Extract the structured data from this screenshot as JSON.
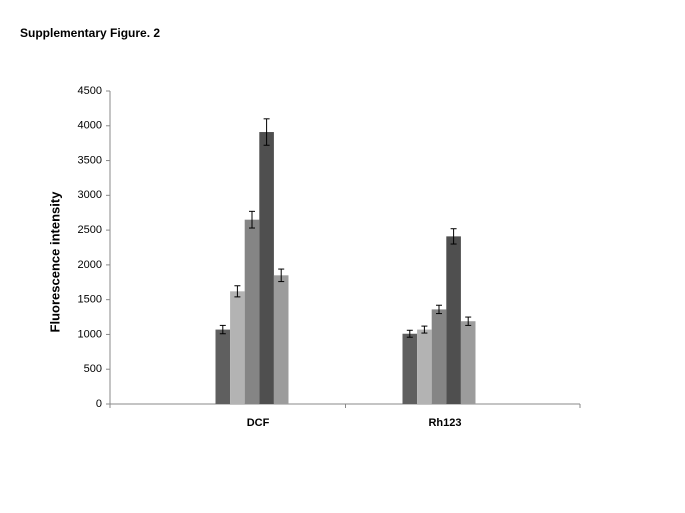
{
  "chart_data": {
    "type": "bar",
    "title": "Supplementary Figure. 2",
    "y_label": "Fluorescence intensity",
    "categories": [
      "DCF",
      "Rh123"
    ],
    "series": [
      {
        "color": "#5f5f5f",
        "values": [
          1070,
          1010
        ],
        "errors": [
          60,
          50
        ]
      },
      {
        "color": "#b3b3b3",
        "values": [
          1620,
          1070
        ],
        "errors": [
          80,
          50
        ]
      },
      {
        "color": "#858585",
        "values": [
          2650,
          1360
        ],
        "errors": [
          120,
          60
        ]
      },
      {
        "color": "#4f4f4f",
        "values": [
          3910,
          2410
        ],
        "errors": [
          190,
          110
        ]
      },
      {
        "color": "#9c9c9c",
        "values": [
          1850,
          1190
        ],
        "errors": [
          90,
          60
        ]
      }
    ],
    "ylim": [
      0,
      4500
    ],
    "yticks": [
      0,
      500,
      1000,
      1500,
      2000,
      2500,
      3000,
      3500,
      4000,
      4500
    ]
  }
}
